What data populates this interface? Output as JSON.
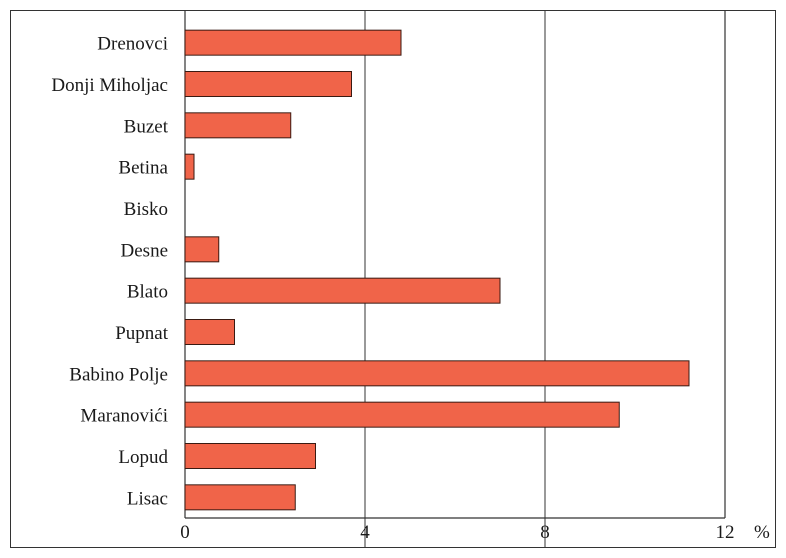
{
  "chart_data": {
    "type": "bar",
    "orientation": "horizontal",
    "categories": [
      "Drenovci",
      "Donji Miholjac",
      "Buzet",
      "Betina",
      "Bisko",
      "Desne",
      "Blato",
      "Pupnat",
      "Babino Polje",
      "Maranovići",
      "Lopud",
      "Lisac"
    ],
    "values": [
      4.8,
      3.7,
      2.35,
      0.2,
      0,
      0.75,
      7.0,
      1.1,
      11.2,
      9.65,
      2.9,
      2.45
    ],
    "xlim": [
      0,
      12
    ],
    "xticks": [
      "0",
      "4",
      "8",
      "12"
    ],
    "xlabel": "%",
    "grid": "vertical lines at 4 and 8",
    "bar_color": "#f06449",
    "bar_edge_color": "#3a1a12",
    "frame_color": "#333333"
  }
}
